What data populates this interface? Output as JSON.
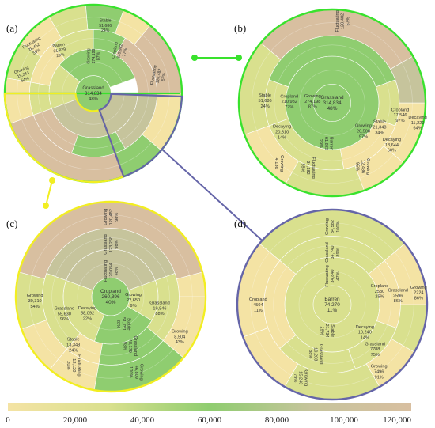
{
  "colors": {
    "scale": [
      "#f4e3a4",
      "#d9e08e",
      "#8fcd70",
      "#c6c49c",
      "#d8bfa0"
    ],
    "green_ring": "#39e22d",
    "yellow_ring": "#f2ee21",
    "purple_ring": "#6565a8",
    "divider": "#ffffff"
  },
  "panels": [
    {
      "id": "a",
      "label": "(a)",
      "center": {
        "name": "Grassland",
        "value": "314,834",
        "pct": "48%"
      },
      "labels": [
        {
          "lines": [
            "Growing",
            "274,198",
            "87%"
          ],
          "a": 90,
          "r": 0.42,
          "rot": -90
        },
        {
          "lines": [
            "Cropland",
            "210,982",
            "77%"
          ],
          "a": 58,
          "r": 0.56,
          "rot": -78
        },
        {
          "lines": [
            "Fluctuating",
            "120,482",
            "57%"
          ],
          "a": 15,
          "r": 0.76,
          "rot": -80
        },
        {
          "lines": [
            "Stable",
            "51,686",
            "24%"
          ],
          "a": 80,
          "r": 0.78,
          "rot": 0
        },
        {
          "lines": [
            "Barren",
            "61,829",
            "29%"
          ],
          "a": 128,
          "r": 0.62,
          "rot": -10
        },
        {
          "lines": [
            "Fluctuating",
            "28,452",
            "55%"
          ],
          "a": 142,
          "r": 0.85,
          "rot": -30
        },
        {
          "lines": [
            "Growing",
            "15,243",
            "54%"
          ],
          "a": 165,
          "r": 0.82,
          "rot": -20
        }
      ]
    },
    {
      "id": "b",
      "label": "(b)",
      "center": {
        "name": "Grassland",
        "value": "314,834",
        "pct": "48%"
      },
      "labels": [
        {
          "lines": [
            "Growing",
            "274,198",
            "87%"
          ],
          "a": 175,
          "r": 0.21,
          "rot": 0
        },
        {
          "lines": [
            "Cropland",
            "210,982",
            "77%"
          ],
          "a": 178,
          "r": 0.46,
          "rot": 0
        },
        {
          "lines": [
            "Stable",
            "51,686",
            "24%"
          ],
          "a": 178,
          "r": 0.72,
          "rot": 0
        },
        {
          "lines": [
            "Fluctuating",
            "120,482",
            "57%"
          ],
          "a": 83,
          "r": 0.88,
          "rot": -90
        },
        {
          "lines": [
            "Cropland",
            "17,546",
            "97%"
          ],
          "a": 350,
          "r": 0.74,
          "rot": 0
        },
        {
          "lines": [
            "Decaying",
            "11,220",
            "64%"
          ],
          "a": 347,
          "r": 0.94,
          "rot": 0
        },
        {
          "lines": [
            "Stable",
            "21,348",
            "34%"
          ],
          "a": 333,
          "r": 0.57,
          "rot": 0
        },
        {
          "lines": [
            "Decaying",
            "13,644",
            "60%"
          ],
          "a": 325,
          "r": 0.78,
          "rot": 0
        },
        {
          "lines": [
            "Growing",
            "20,508",
            "97%"
          ],
          "a": 318,
          "r": 0.45,
          "rot": 0
        },
        {
          "lines": [
            "Decaying",
            "20,310",
            "14%"
          ],
          "a": 210,
          "r": 0.62,
          "rot": 0
        },
        {
          "lines": [
            "Fluctuating",
            "34,182",
            "55%"
          ],
          "a": 250,
          "r": 0.74,
          "rot": 90
        },
        {
          "lines": [
            "Barren",
            "61,829",
            "29%"
          ],
          "a": 262,
          "r": 0.44,
          "rot": 90
        },
        {
          "lines": [
            "Growing",
            "12,486",
            "95%"
          ],
          "a": 296,
          "r": 0.76,
          "rot": 90
        },
        {
          "lines": [
            "Growing",
            "4,136"
          ],
          "a": 229,
          "r": 0.86,
          "rot": 90
        }
      ]
    },
    {
      "id": "c",
      "label": "(c)",
      "center": {
        "name": "Cropland",
        "value": "260,396",
        "pct": "40%"
      },
      "labels": [
        {
          "lines": [
            "Fluctuating",
            "120,054",
            "48%"
          ],
          "a": 90,
          "r": 0.27,
          "rot": -90
        },
        {
          "lines": [
            "Grassland",
            "123,268",
            "98%"
          ],
          "a": 90,
          "r": 0.55,
          "rot": -90
        },
        {
          "lines": [
            "Growing",
            "120,482",
            "98%"
          ],
          "a": 90,
          "r": 0.84,
          "rot": -90
        },
        {
          "lines": [
            "Growing",
            "22,650",
            "9%"
          ],
          "a": 352,
          "r": 0.24,
          "rot": 0
        },
        {
          "lines": [
            "Grassland",
            "19,846",
            "88%"
          ],
          "a": 347,
          "r": 0.53,
          "rot": 0
        },
        {
          "lines": [
            "Growing",
            "8,504",
            "43%"
          ],
          "a": 330,
          "r": 0.84,
          "rot": 0
        },
        {
          "lines": [
            "Stable",
            "51,751",
            "20%"
          ],
          "a": 296,
          "r": 0.32,
          "rot": 90
        },
        {
          "lines": [
            "Grassland",
            "48,179",
            "93%"
          ],
          "a": 292,
          "r": 0.56,
          "rot": 90
        },
        {
          "lines": [
            "Growing",
            "46,809",
            "100%"
          ],
          "a": 289,
          "r": 0.84,
          "rot": 90
        },
        {
          "lines": [
            "Decaying",
            "58,092",
            "22%"
          ],
          "a": 215,
          "r": 0.3,
          "rot": 0
        },
        {
          "lines": [
            "Grassland",
            "55,630",
            "96%"
          ],
          "a": 200,
          "r": 0.52,
          "rot": 0
        },
        {
          "lines": [
            "Growing",
            "30,310",
            "54%"
          ],
          "a": 183,
          "r": 0.8,
          "rot": 0
        },
        {
          "lines": [
            "Stable",
            "13,348",
            "24%"
          ],
          "a": 232,
          "r": 0.64,
          "rot": 0
        },
        {
          "lines": [
            "Fluctuating",
            "12,120",
            "20%"
          ],
          "a": 242,
          "r": 0.82,
          "rot": 90
        }
      ]
    },
    {
      "id": "d",
      "label": "(d)",
      "center": {
        "name": "Barren",
        "value": "74,270",
        "pct": "11%"
      },
      "labels": [
        {
          "lines": [
            "Fluctuating",
            "34,840",
            "47%"
          ],
          "a": 90,
          "r": 0.3,
          "rot": -90
        },
        {
          "lines": [
            "Grassland",
            "34,740",
            "89%"
          ],
          "a": 90,
          "r": 0.55,
          "rot": -90
        },
        {
          "lines": [
            "Growing",
            "34,582",
            "100%"
          ],
          "a": 90,
          "r": 0.82,
          "rot": -90
        },
        {
          "lines": [
            "Cropland",
            "4504",
            "11%"
          ],
          "a": 180,
          "r": 0.78,
          "rot": 0
        },
        {
          "lines": [
            "Stable",
            "21,734",
            "29%"
          ],
          "a": 260,
          "r": 0.28,
          "rot": 90
        },
        {
          "lines": [
            "Grassland",
            "19,208",
            "88%"
          ],
          "a": 252,
          "r": 0.55,
          "rot": 90
        },
        {
          "lines": [
            "Growing",
            "15,240",
            "79%"
          ],
          "a": 247,
          "r": 0.84,
          "rot": 90
        },
        {
          "lines": [
            "Decaying",
            "10,240",
            "14%"
          ],
          "a": 320,
          "r": 0.45,
          "rot": 0
        },
        {
          "lines": [
            "Grassland",
            "7788",
            "75%"
          ],
          "a": 314,
          "r": 0.65,
          "rot": 0
        },
        {
          "lines": [
            "Growing",
            "7496",
            "91%"
          ],
          "a": 305,
          "r": 0.86,
          "rot": 0
        },
        {
          "lines": [
            "Grassland",
            "2596",
            "86%"
          ],
          "a": 8,
          "r": 0.7,
          "rot": 0
        },
        {
          "lines": [
            "Growing",
            "2224",
            "86%"
          ],
          "a": 8,
          "r": 0.92,
          "rot": 0
        },
        {
          "lines": [
            "Cropland",
            "2530",
            "25%"
          ],
          "a": 16,
          "r": 0.52,
          "rot": 0
        }
      ]
    }
  ],
  "colorbar": {
    "ticks": [
      "0",
      "20,000",
      "40,000",
      "60,000",
      "80,000",
      "100,000",
      "120,000"
    ]
  }
}
